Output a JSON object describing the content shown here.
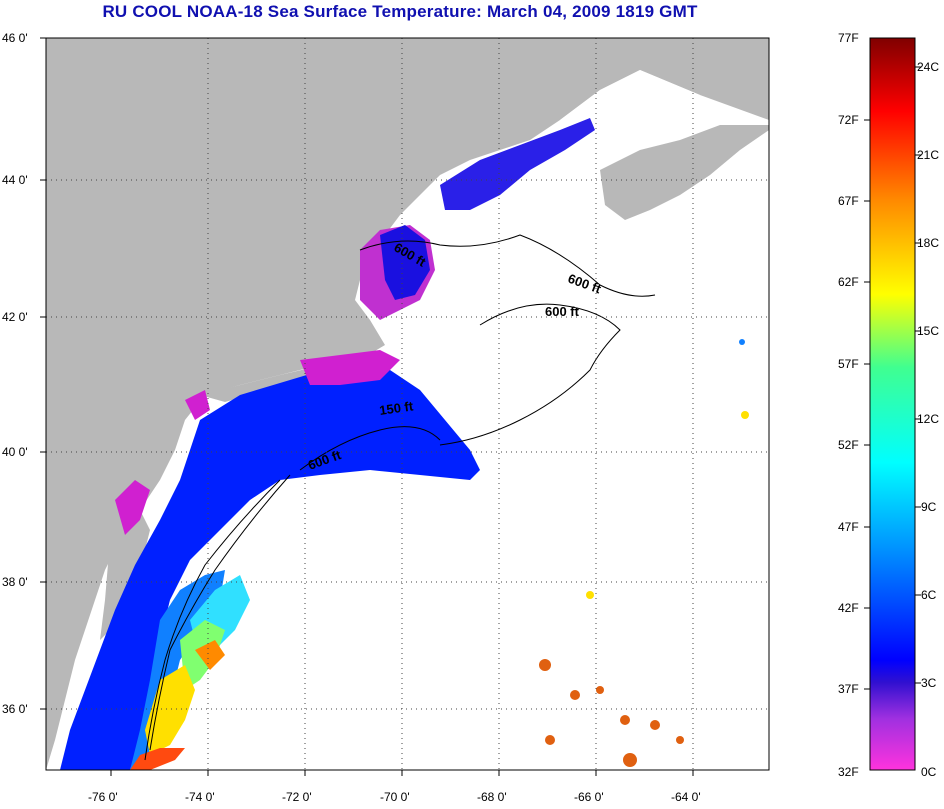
{
  "title": "RU COOL  NOAA-18  Sea Surface Temperature:  March 04, 2009 1819 GMT",
  "map": {
    "lat_labels": [
      "46 0'",
      "44 0'",
      "42 0'",
      "40 0'",
      "38 0'",
      "36 0'"
    ],
    "lon_labels": [
      "-76 0'",
      "-74 0'",
      "-72 0'",
      "-70 0'",
      "-68 0'",
      "-66 0'",
      "-64 0'"
    ],
    "depth_labels": [
      "600 ft",
      "600 ft",
      "600 ft",
      "150 ft",
      "600 ft"
    ],
    "colors": {
      "land": "#b8b8b8",
      "no_data": "#ffffff",
      "grid": "#444444"
    }
  },
  "colorbar": {
    "fahrenheit": [
      "77F",
      "72F",
      "67F",
      "62F",
      "57F",
      "52F",
      "47F",
      "42F",
      "37F",
      "32F"
    ],
    "celsius": [
      "24C",
      "21C",
      "18C",
      "15C",
      "12C",
      "9C",
      "6C",
      "3C",
      "0C"
    ],
    "range_f": [
      32,
      77
    ],
    "range_c": [
      0,
      25
    ]
  }
}
